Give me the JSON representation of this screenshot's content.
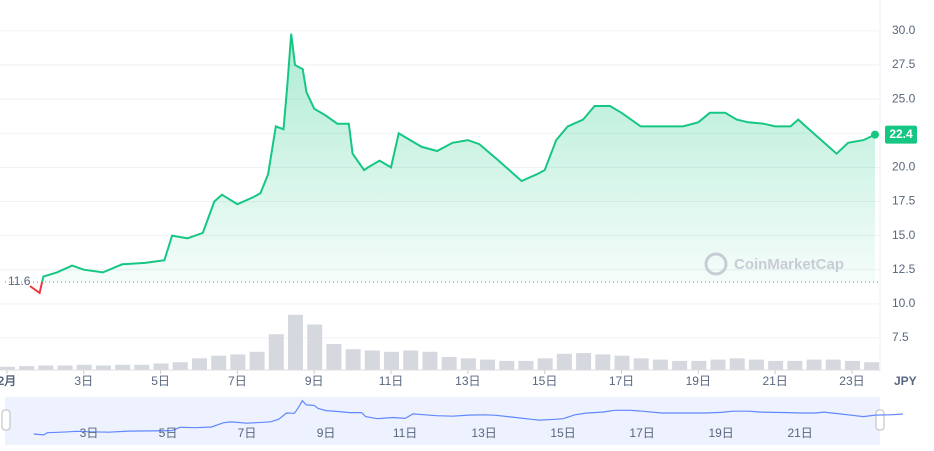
{
  "chart_data": {
    "type": "line",
    "currency": "JPY",
    "watermark": "CoinMarketCap",
    "reference": {
      "value": 11.6,
      "label": "11.6"
    },
    "xlim": [
      0.95,
      23.73
    ],
    "xticks": [
      {
        "value": 1,
        "label": "2月"
      },
      {
        "value": 3,
        "label": "3日"
      },
      {
        "value": 5,
        "label": "5日"
      },
      {
        "value": 7,
        "label": "7日"
      },
      {
        "value": 9,
        "label": "9日"
      },
      {
        "value": 11,
        "label": "11日"
      },
      {
        "value": 13,
        "label": "13日"
      },
      {
        "value": 15,
        "label": "15日"
      },
      {
        "value": 17,
        "label": "17日"
      },
      {
        "value": 19,
        "label": "19日"
      },
      {
        "value": 21,
        "label": "21日"
      },
      {
        "value": 23,
        "label": "23日"
      }
    ],
    "ylim": [
      5.15,
      31.9
    ],
    "yticks": [
      7.5,
      {
        "value": 10,
        "label": "10.0"
      },
      12.5,
      {
        "value": 15,
        "label": "15.0"
      },
      17.5,
      {
        "value": 20,
        "label": "20.0"
      },
      22.5,
      {
        "value": 25,
        "label": "25.0"
      },
      27.5,
      {
        "value": 30,
        "label": "30.0"
      }
    ],
    "grid": true,
    "series": [
      {
        "name": "Price",
        "color": "#16c784",
        "below_color": "#ea3943",
        "x": [
          1.6,
          1.85,
          1.95,
          2.3,
          2.7,
          3.0,
          3.5,
          4.0,
          4.6,
          5.1,
          5.3,
          5.7,
          6.1,
          6.4,
          6.6,
          7.0,
          7.4,
          7.6,
          7.8,
          8.0,
          8.2,
          8.3,
          8.4,
          8.5,
          8.7,
          8.8,
          9.0,
          9.3,
          9.6,
          9.9,
          10.0,
          10.3,
          10.4,
          10.7,
          11.0,
          11.2,
          11.5,
          11.8,
          12.2,
          12.6,
          13.0,
          13.3,
          13.8,
          14.2,
          14.4,
          14.8,
          15.0,
          15.3,
          15.6,
          16.0,
          16.3,
          16.7,
          17.0,
          17.5,
          18.0,
          18.6,
          19.0,
          19.3,
          19.7,
          20.0,
          20.3,
          20.7,
          21.0,
          21.4,
          21.6,
          22.0,
          22.4,
          22.6,
          22.9,
          23.3,
          23.6
        ],
        "values": [
          11.3,
          10.8,
          12.0,
          12.3,
          12.8,
          12.5,
          12.3,
          12.9,
          13.0,
          13.2,
          15.0,
          14.8,
          15.2,
          17.5,
          18.0,
          17.3,
          17.8,
          18.1,
          19.5,
          23.0,
          22.8,
          26.0,
          29.8,
          27.5,
          27.2,
          25.5,
          24.3,
          23.8,
          23.2,
          23.2,
          21.0,
          19.8,
          20.0,
          20.5,
          20.0,
          22.5,
          22.0,
          21.5,
          21.2,
          21.8,
          22.0,
          21.7,
          20.5,
          19.5,
          19.0,
          19.5,
          19.8,
          22.0,
          23.0,
          23.5,
          24.5,
          24.5,
          24.0,
          23.0,
          23.0,
          23.0,
          23.3,
          24.0,
          24.0,
          23.5,
          23.3,
          23.2,
          23.0,
          23.0,
          23.5,
          22.5,
          21.5,
          21.0,
          21.8,
          22.0,
          22.4
        ],
        "last_label": "22.4"
      }
    ],
    "volume": {
      "color": "#d5d8de",
      "ylim": [
        0,
        100
      ],
      "x": [
        1,
        1.5,
        2,
        2.5,
        3,
        3.5,
        4,
        4.5,
        5,
        5.5,
        6,
        6.5,
        7,
        7.5,
        8,
        8.5,
        9,
        9.5,
        10,
        10.5,
        11,
        11.5,
        12,
        12.5,
        13,
        13.5,
        14,
        14.5,
        15,
        15.5,
        16,
        16.5,
        17,
        17.5,
        18,
        18.5,
        19,
        19.5,
        20,
        20.5,
        21,
        21.5,
        22,
        22.5,
        23,
        23.5
      ],
      "values": [
        5,
        6,
        7,
        7,
        8,
        7,
        8,
        8,
        10,
        12,
        18,
        22,
        24,
        28,
        55,
        85,
        70,
        40,
        32,
        30,
        28,
        30,
        28,
        20,
        18,
        16,
        14,
        14,
        18,
        25,
        26,
        24,
        22,
        18,
        16,
        14,
        14,
        16,
        18,
        16,
        14,
        14,
        16,
        16,
        14,
        12
      ]
    }
  }
}
